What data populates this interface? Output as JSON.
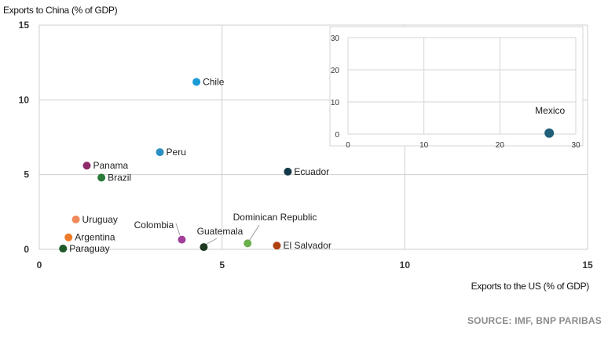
{
  "chart_data": [
    {
      "type": "scatter",
      "ylabel": "Exports to China (% of GDP)",
      "xlabel": "Exports to the US (% of GDP)",
      "xlim": [
        0,
        15
      ],
      "ylim": [
        0,
        15
      ],
      "xticks": [
        "0",
        "5",
        "10",
        "15"
      ],
      "yticks": [
        "0",
        "5",
        "10",
        "15"
      ],
      "grid": true,
      "points": [
        {
          "label": "Chile",
          "x": 4.3,
          "y": 11.2,
          "color": "#1b9ad6"
        },
        {
          "label": "Peru",
          "x": 3.3,
          "y": 6.5,
          "color": "#2b8fc2"
        },
        {
          "label": "Ecuador",
          "x": 6.8,
          "y": 5.2,
          "color": "#133847"
        },
        {
          "label": "Panama",
          "x": 1.3,
          "y": 5.6,
          "color": "#8c2a6a"
        },
        {
          "label": "Brazil",
          "x": 1.7,
          "y": 4.8,
          "color": "#2b7a3a"
        },
        {
          "label": "Uruguay",
          "x": 1.0,
          "y": 2.0,
          "color": "#f08a5a"
        },
        {
          "label": "Argentina",
          "x": 0.8,
          "y": 0.8,
          "color": "#ef7a2a"
        },
        {
          "label": "Paraguay",
          "x": 0.65,
          "y": 0.05,
          "color": "#1f5a2a"
        },
        {
          "label": "Colombia",
          "x": 3.9,
          "y": 0.65,
          "color": "#a0409a"
        },
        {
          "label": "Guatemala",
          "x": 4.5,
          "y": 0.15,
          "color": "#1e3a22"
        },
        {
          "label": "Dominican Republic",
          "x": 5.7,
          "y": 0.4,
          "color": "#6ab04c"
        },
        {
          "label": "El Salvador",
          "x": 6.5,
          "y": 0.25,
          "color": "#b0400f"
        }
      ]
    },
    {
      "type": "scatter",
      "xlim": [
        0,
        30
      ],
      "ylim": [
        0,
        30
      ],
      "xticks": [
        "0",
        "10",
        "20",
        "30"
      ],
      "yticks": [
        "0",
        "10",
        "20",
        "30"
      ],
      "grid": true,
      "points": [
        {
          "label": "Mexico",
          "x": 26.5,
          "y": 0.3,
          "color": "#1f5f7a"
        }
      ]
    }
  ],
  "source": "SOURCE: IMF, BNP PARIBAS"
}
